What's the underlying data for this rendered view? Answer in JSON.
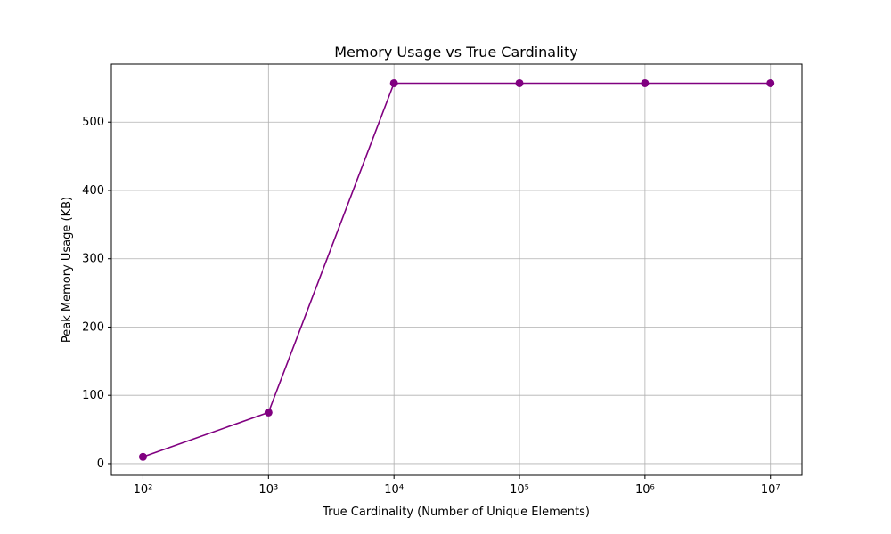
{
  "chart_data": {
    "type": "line",
    "title": "Memory Usage vs True Cardinality",
    "xlabel": "True Cardinality (Number of Unique Elements)",
    "ylabel": "Peak Memory Usage (KB)",
    "x": [
      100,
      1000,
      10000,
      100000,
      1000000,
      10000000
    ],
    "series": [
      {
        "name": "Peak Memory Usage",
        "color": "#800080",
        "values": [
          10,
          75,
          557,
          557,
          557,
          557
        ]
      }
    ],
    "xscale": "log",
    "xlim": [
      56,
      17800000
    ],
    "xticks": [
      {
        "value": 100,
        "label": "10²"
      },
      {
        "value": 1000,
        "label": "10³"
      },
      {
        "value": 10000,
        "label": "10⁴"
      },
      {
        "value": 100000,
        "label": "10⁵"
      },
      {
        "value": 1000000,
        "label": "10⁶"
      },
      {
        "value": 10000000,
        "label": "10⁷"
      }
    ],
    "ylim": [
      -17,
      585
    ],
    "yticks": [
      0,
      100,
      200,
      300,
      400,
      500
    ],
    "grid": true
  }
}
